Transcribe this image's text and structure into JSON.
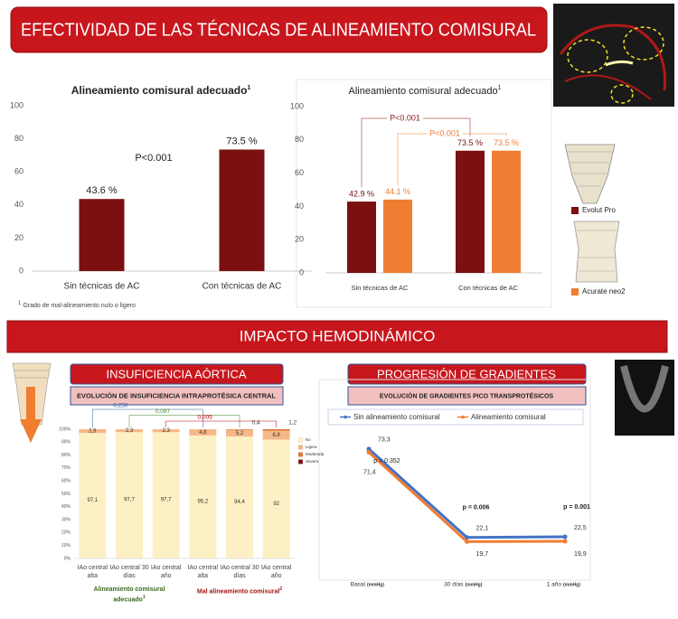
{
  "header": {
    "title": "EFECTIVIDAD DE LAS TÉCNICAS DE ALINEAMIENTO COMISURAL"
  },
  "section": {
    "title": "IMPACTO HEMODINÁMICO"
  },
  "chart_data": [
    {
      "type": "bar",
      "title": "Alineamiento comisural adecuado",
      "title_note_marker": "1",
      "categories": [
        "Sin técnicas de AC",
        "Con técnicas de AC"
      ],
      "values": [
        43.6,
        73.5
      ],
      "value_labels": [
        "43.6 %",
        "73.5 %"
      ],
      "color": "#7b1010",
      "ylim": [
        0,
        100
      ],
      "yticks": [
        0,
        20,
        40,
        60,
        80,
        100
      ],
      "annotation": "P<0.001",
      "footnote_marker": "1",
      "footnote": "Grado de mal-alineamiento nulo o ligero"
    },
    {
      "type": "bar",
      "title": "Alineamiento comisural adecuado",
      "title_note_marker": "1",
      "categories": [
        "Sin técnicas de AC",
        "Con técnicas de AC"
      ],
      "series": [
        {
          "name": "Evolut Pro",
          "color": "#7b1010",
          "values": [
            42.9,
            73.5
          ],
          "value_labels": [
            "42.9 %",
            "73.5 %"
          ]
        },
        {
          "name": "Acurate neo2",
          "color": "#ef7d32",
          "values": [
            44.1,
            73.5
          ],
          "value_labels": [
            "44.1 %",
            "73.5 %"
          ]
        }
      ],
      "ylim": [
        0,
        100
      ],
      "yticks": [
        0,
        20,
        40,
        60,
        80,
        100
      ],
      "annotations": [
        {
          "text": "P<0.001",
          "color": "#8b1a1a"
        },
        {
          "text": "P<0.001",
          "color": "#ef7d32"
        }
      ]
    },
    {
      "type": "stacked",
      "title": "INSUFICIENCIA AÓRTICA",
      "subtitle": "EVOLUCIÓN DE INSUFICIENCIA INTRAPROTÉSICA CENTRAL",
      "categories": [
        "IAo central alta",
        "IAo central 30 días",
        "IAo central año",
        "IAo central alta",
        "IAo central 30 días",
        "IAo central año"
      ],
      "groups": [
        {
          "label": "Alineamiento comisural adecuado",
          "note_marker": "1",
          "color": "#3a6b1f"
        },
        {
          "label": "Mal alineamiento comisural",
          "note_marker": "2",
          "color": "#a31515"
        }
      ],
      "series": [
        {
          "name": "No",
          "color": "#fdf0c4",
          "values": [
            97.1,
            97.7,
            97.7,
            95.2,
            94.4,
            92
          ],
          "value_labels": [
            "97,1",
            "97,7",
            "97,7",
            "95,2",
            "94,4",
            "92"
          ]
        },
        {
          "name": "Ligera",
          "color": "#f6b888",
          "values": [
            2.9,
            2.3,
            2.3,
            4.8,
            5.2,
            6.8
          ],
          "value_labels": [
            "2,9",
            "2,3",
            "2,3",
            "4,8",
            "5,2",
            "6,8"
          ]
        },
        {
          "name": "Moderada",
          "color": "#e0763a",
          "values": [
            0,
            0,
            0,
            0,
            0.4,
            1.2
          ],
          "value_labels": [
            null,
            null,
            null,
            null,
            "0,4",
            "1,2"
          ]
        },
        {
          "name": "Severa",
          "color": "#7b1010",
          "values": [
            0,
            0,
            0,
            0,
            0,
            0
          ]
        }
      ],
      "ylim": [
        0,
        100
      ],
      "yticks": [
        {
          "value": 0,
          "label": "0%"
        },
        {
          "value": 10,
          "label": "10%"
        },
        {
          "value": 20,
          "label": "20%"
        },
        {
          "value": 30,
          "label": "30%"
        },
        {
          "value": 40,
          "label": "40%"
        },
        {
          "value": 50,
          "label": "50%"
        },
        {
          "value": 60,
          "label": "60%"
        },
        {
          "value": 70,
          "label": "70%"
        },
        {
          "value": 80,
          "label": "80%"
        },
        {
          "value": 90,
          "label": "90%"
        },
        {
          "value": 100,
          "label": "100%"
        }
      ],
      "annotations": [
        {
          "text": "0,250",
          "color": "#2f5597"
        },
        {
          "text": "0,097",
          "color": "#3a8a1f"
        },
        {
          "text": "0,005",
          "color": "#c00000"
        }
      ]
    },
    {
      "type": "line",
      "title": "PROGRESIÓN DE GRADIENTES",
      "subtitle": "EVOLUCIÓN DE GRADIENTES PICO TRANSPROTÉSICOS",
      "categories": [
        "Basal",
        "30 días",
        "1 año"
      ],
      "unit": "(mmHg)",
      "series": [
        {
          "name": "Sin alineamiento comisural",
          "color": "#4472c4",
          "values": [
            73.3,
            22.1,
            22.5
          ],
          "value_labels": [
            "73,3",
            "22,1",
            "22,5"
          ]
        },
        {
          "name": "Alineamiento comisural",
          "color": "#ef7d32",
          "values": [
            71.4,
            19.7,
            19.9
          ],
          "value_labels": [
            "71,4",
            "19,7",
            "19,9"
          ]
        }
      ],
      "ylim": [
        0,
        80
      ],
      "annotations": [
        "p = 0.352",
        "p = 0.006",
        "p = 0.001"
      ]
    }
  ]
}
